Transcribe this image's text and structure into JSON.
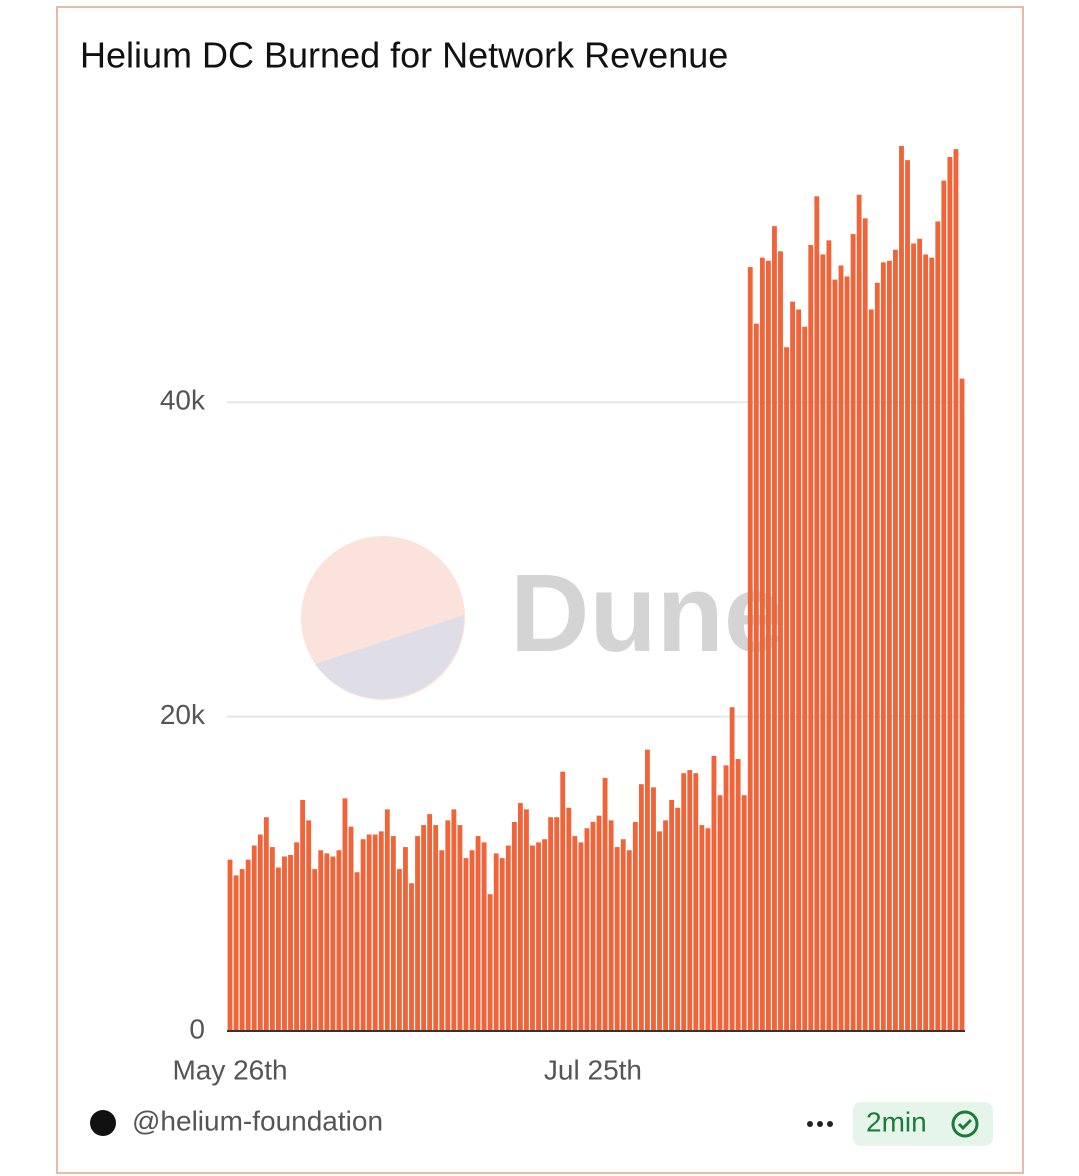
{
  "chart_data": {
    "type": "bar",
    "title": "Helium DC Burned for Network Revenue",
    "categories": [
      "May 26th",
      null,
      null,
      null,
      null,
      null,
      null,
      null,
      null,
      null,
      null,
      null,
      null,
      null,
      null,
      null,
      null,
      null,
      null,
      null,
      null,
      null,
      null,
      null,
      null,
      null,
      null,
      null,
      null,
      null,
      null,
      null,
      null,
      null,
      null,
      null,
      null,
      null,
      null,
      null,
      null,
      null,
      null,
      null,
      null,
      null,
      null,
      null,
      null,
      null,
      null,
      null,
      null,
      null,
      null,
      null,
      null,
      null,
      null,
      null,
      "Jul 25th",
      null,
      null,
      null,
      null,
      null,
      null,
      null,
      null,
      null,
      null,
      null,
      null,
      null,
      null,
      null,
      null,
      null,
      null,
      null,
      null,
      null,
      null,
      null,
      null,
      null,
      null,
      null,
      null,
      null,
      null,
      null,
      null,
      null,
      null,
      null,
      null,
      null,
      null,
      null,
      null,
      null,
      null,
      null,
      null,
      null,
      null,
      null,
      null,
      null,
      null,
      null,
      null,
      null,
      null,
      null,
      null,
      null,
      null,
      null,
      null,
      null
    ],
    "values": [
      10900,
      9900,
      10300,
      10900,
      11800,
      12500,
      13600,
      11700,
      10400,
      11100,
      11200,
      12000,
      14700,
      13400,
      10300,
      11500,
      11300,
      11100,
      11500,
      14800,
      13000,
      10100,
      12200,
      12500,
      12500,
      12700,
      14100,
      12400,
      10300,
      11700,
      9400,
      12400,
      13100,
      13800,
      13100,
      11500,
      13400,
      14100,
      13100,
      11000,
      11500,
      12400,
      12000,
      8700,
      11300,
      11000,
      11800,
      13300,
      14500,
      14100,
      11800,
      12000,
      12200,
      13600,
      13600,
      16500,
      14200,
      12400,
      12000,
      12900,
      13300,
      13700,
      16100,
      13400,
      11700,
      12200,
      11500,
      13300,
      15700,
      17900,
      15500,
      12700,
      13400,
      14700,
      14200,
      16400,
      16600,
      16400,
      13100,
      12900,
      17500,
      15000,
      16900,
      20600,
      17300,
      15000,
      48600,
      45000,
      49200,
      49000,
      51200,
      49600,
      43500,
      46400,
      45900,
      44800,
      50000,
      53100,
      49400,
      50300,
      47800,
      48700,
      48000,
      50700,
      53200,
      51700,
      45900,
      47600,
      48900,
      49000,
      49700,
      56300,
      55400,
      50100,
      50400,
      49400,
      49200,
      51500,
      54100,
      55600,
      56100,
      41500
    ],
    "color": "#f0643a",
    "ylim": [
      0,
      57000
    ],
    "yticks": [
      0,
      {
        "value": 20000,
        "label": "20k"
      },
      {
        "value": 40000,
        "label": "40k"
      }
    ],
    "grid": true
  },
  "watermark": "Dune",
  "footer": {
    "author": "@helium-foundation",
    "refresh": "2min"
  }
}
